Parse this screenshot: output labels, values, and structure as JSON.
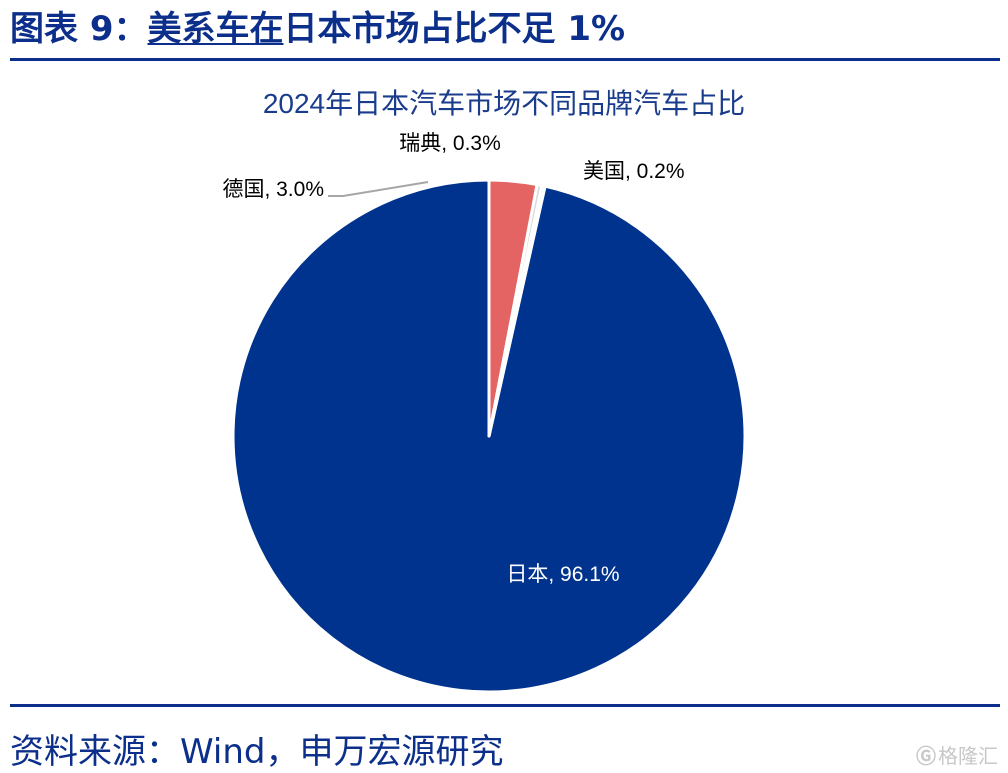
{
  "figure": {
    "label": "图表 9：",
    "title_underlined": "美系车在",
    "title_rest": "日本市场占比不足 1%"
  },
  "source": "资料来源：Wind，申万宏源研究",
  "watermark": {
    "text": "格隆汇",
    "icon": "g-logo-icon"
  },
  "colors": {
    "accent": "#0b2f8a"
  },
  "chart_data": {
    "type": "pie",
    "title": "2024年日本汽车市场不同品牌汽车占比",
    "slices": [
      {
        "name": "日本",
        "value": 96.1,
        "label": "日本, 96.1%",
        "color": "#00338d"
      },
      {
        "name": "德国",
        "value": 3.0,
        "label": "德国, 3.0%",
        "color": "#e46464"
      },
      {
        "name": "瑞典",
        "value": 0.3,
        "label": "瑞典, 0.3%",
        "color": "#d9d9d9"
      },
      {
        "name": "美国",
        "value": 0.2,
        "label": "美国, 0.2%",
        "color": "#9fd6f2"
      }
    ],
    "legend": "none",
    "start": "12 o'clock",
    "direction": "clockwise"
  }
}
